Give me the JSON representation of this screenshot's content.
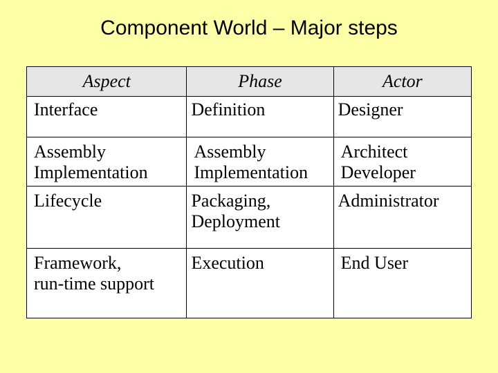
{
  "title": "Component World – Major steps",
  "table": {
    "columns": [
      "Aspect",
      "Phase",
      "Actor"
    ],
    "rows": [
      {
        "aspect": "Interface",
        "phase": "Definition",
        "actor": "Designer"
      },
      {
        "aspect": " Assembly\nImplementation",
        "phase": " Assembly\nImplementation",
        "actor": "Architect\nDeveloper"
      },
      {
        "aspect": "Lifecycle",
        "phase": "Packaging,\nDeployment",
        "actor": "Administrator"
      },
      {
        "aspect": " Framework,\n run-time support",
        "phase": "Execution",
        "actor": "End User"
      }
    ]
  },
  "style": {
    "background_color": "#ffffa8",
    "table_header_bg": "#e6e6e6",
    "table_cell_bg": "#ffffff",
    "border_color": "#000000",
    "title_font": "Arial",
    "title_fontsize": 30,
    "cell_font": "Times New Roman",
    "cell_fontsize": 26,
    "header_italic": true
  }
}
